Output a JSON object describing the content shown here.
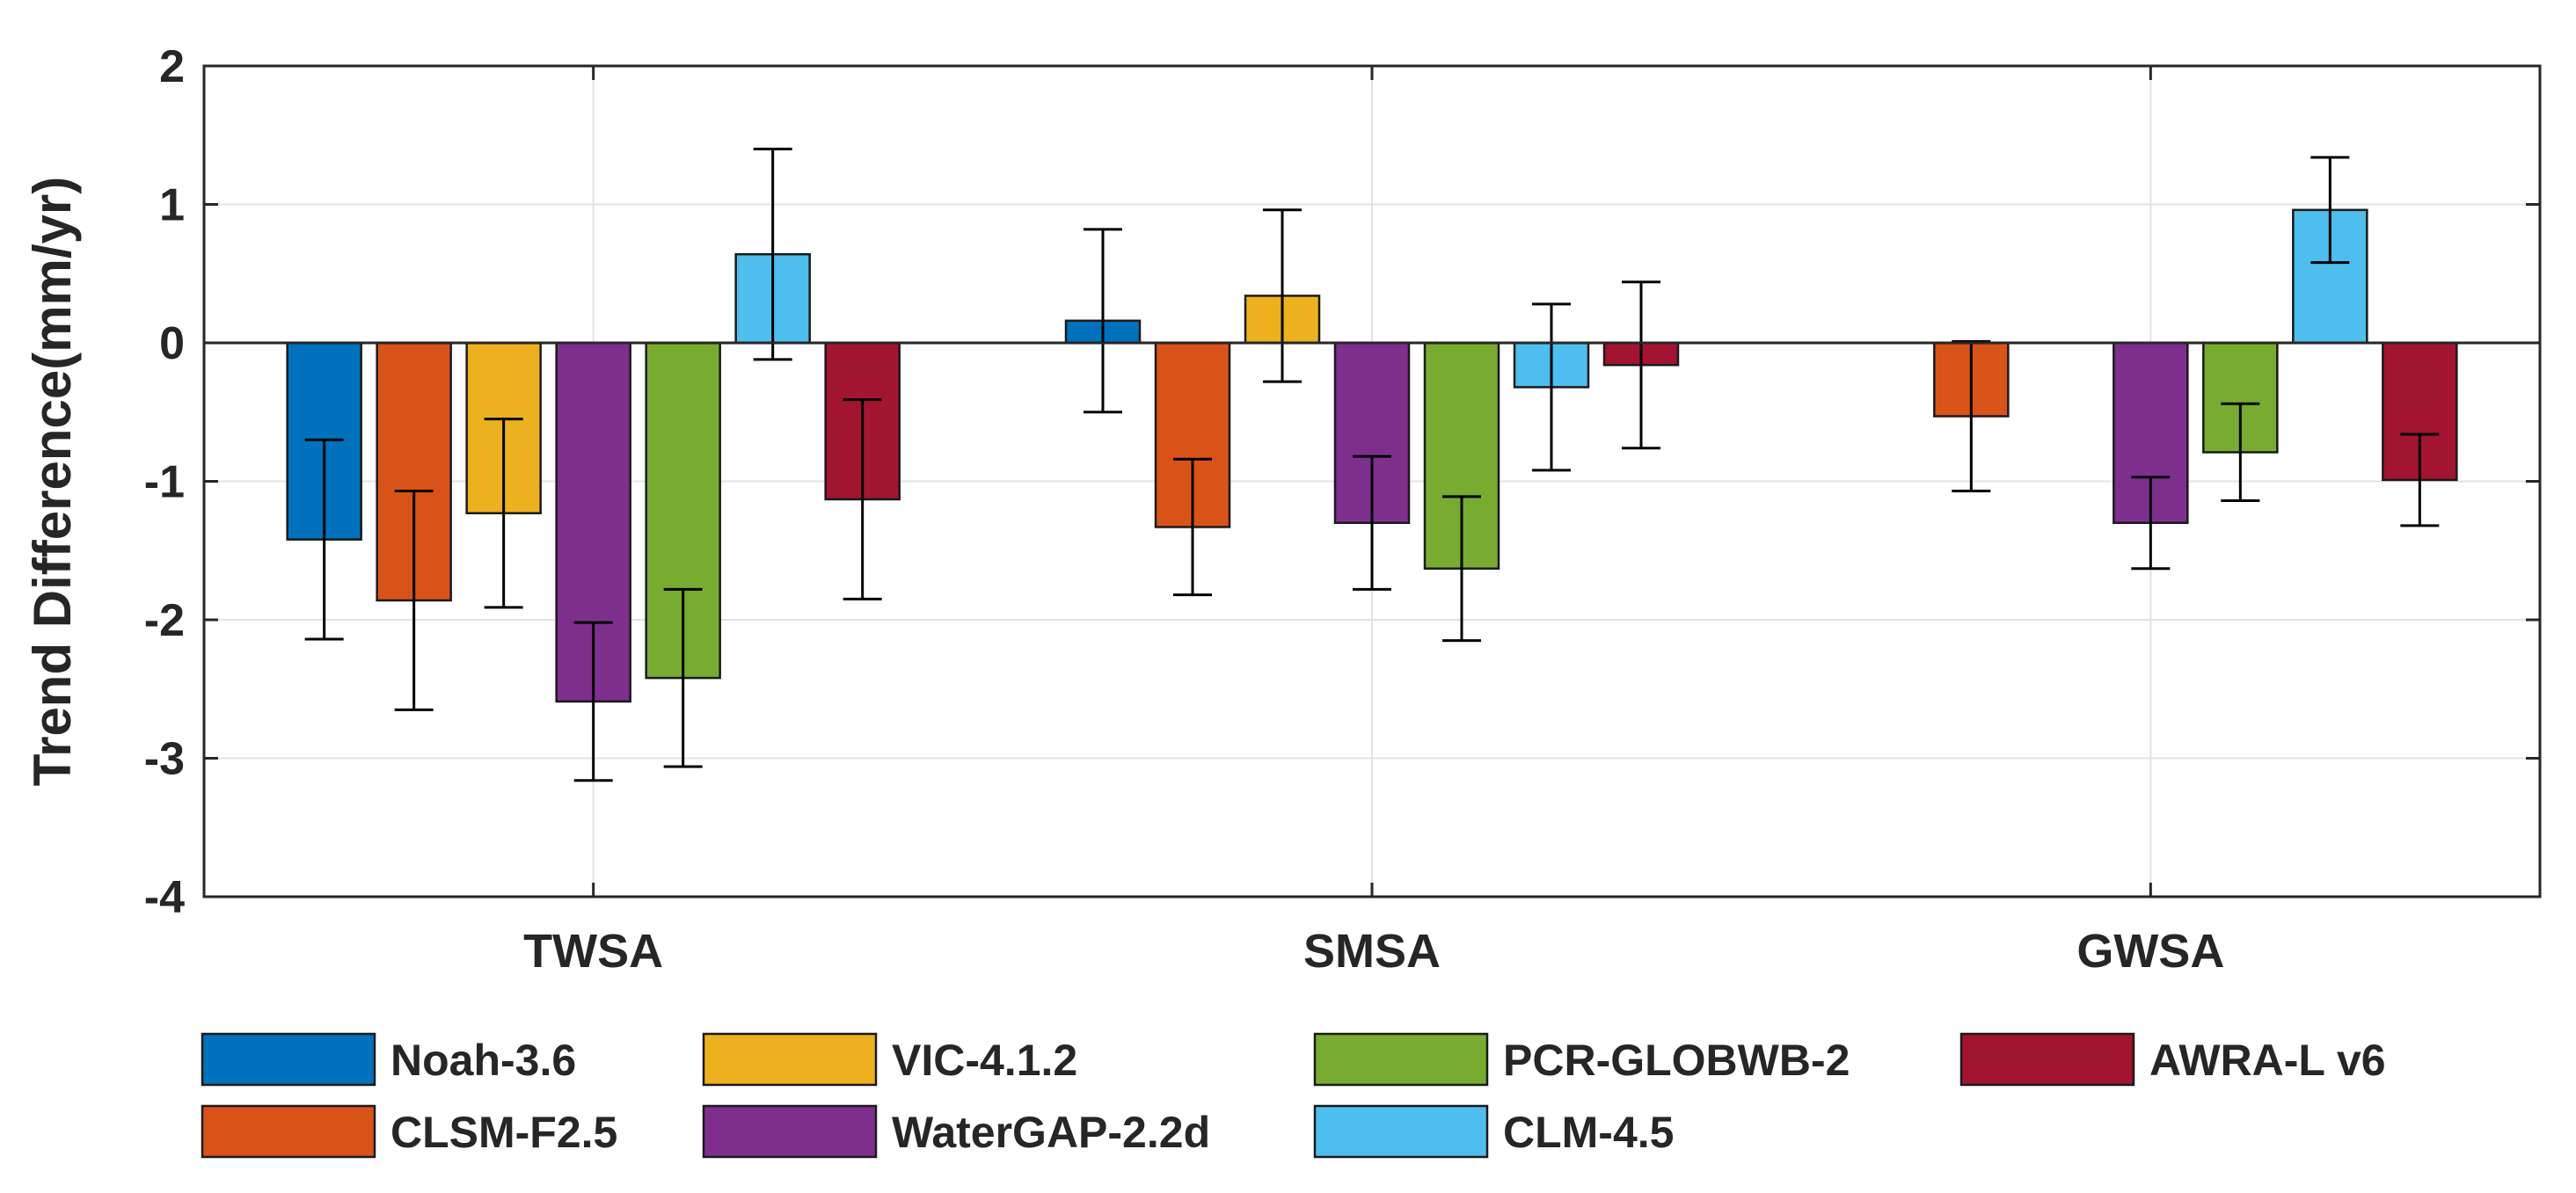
{
  "chart_data": {
    "type": "bar",
    "title": "",
    "xlabel": "",
    "ylabel": "Trend Difference(mm/yr)",
    "ylim": [
      -4,
      2
    ],
    "yticks": [
      2,
      1,
      0,
      -1,
      -2,
      -3,
      -4
    ],
    "grid": true,
    "legend_position": "bottom",
    "categories": [
      "TWSA",
      "SMSA",
      "GWSA"
    ],
    "series": [
      {
        "name": "Noah-3.6",
        "color": "#0072BD",
        "values": [
          -1.42,
          0.16,
          null
        ],
        "errors": [
          0.72,
          0.66,
          null
        ]
      },
      {
        "name": "CLSM-F2.5",
        "color": "#D95319",
        "values": [
          -1.86,
          -1.33,
          -0.53
        ],
        "errors": [
          0.79,
          0.49,
          0.54
        ]
      },
      {
        "name": "VIC-4.1.2",
        "color": "#EDB120",
        "values": [
          -1.23,
          0.34,
          null
        ],
        "errors": [
          0.68,
          0.62,
          null
        ]
      },
      {
        "name": "WaterGAP-2.2d",
        "color": "#7E2F8E",
        "values": [
          -2.59,
          -1.3,
          -1.3
        ],
        "errors": [
          0.57,
          0.48,
          0.33
        ]
      },
      {
        "name": "PCR-GLOBWB-2",
        "color": "#77AC30",
        "values": [
          -2.42,
          -1.63,
          -0.79
        ],
        "errors": [
          0.64,
          0.52,
          0.35
        ]
      },
      {
        "name": "CLM-4.5",
        "color": "#4DBEEE",
        "values": [
          0.64,
          -0.32,
          0.96
        ],
        "errors": [
          0.76,
          0.6,
          0.38
        ]
      },
      {
        "name": "AWRA-L v6",
        "color": "#A2142F",
        "values": [
          -1.13,
          -0.16,
          -0.99
        ],
        "errors": [
          0.72,
          0.6,
          0.33
        ]
      }
    ],
    "legend_order": [
      "Noah-3.6",
      "VIC-4.1.2",
      "PCR-GLOBWB-2",
      "AWRA-L v6",
      "CLSM-F2.5",
      "WaterGAP-2.2d",
      "CLM-4.5"
    ]
  }
}
